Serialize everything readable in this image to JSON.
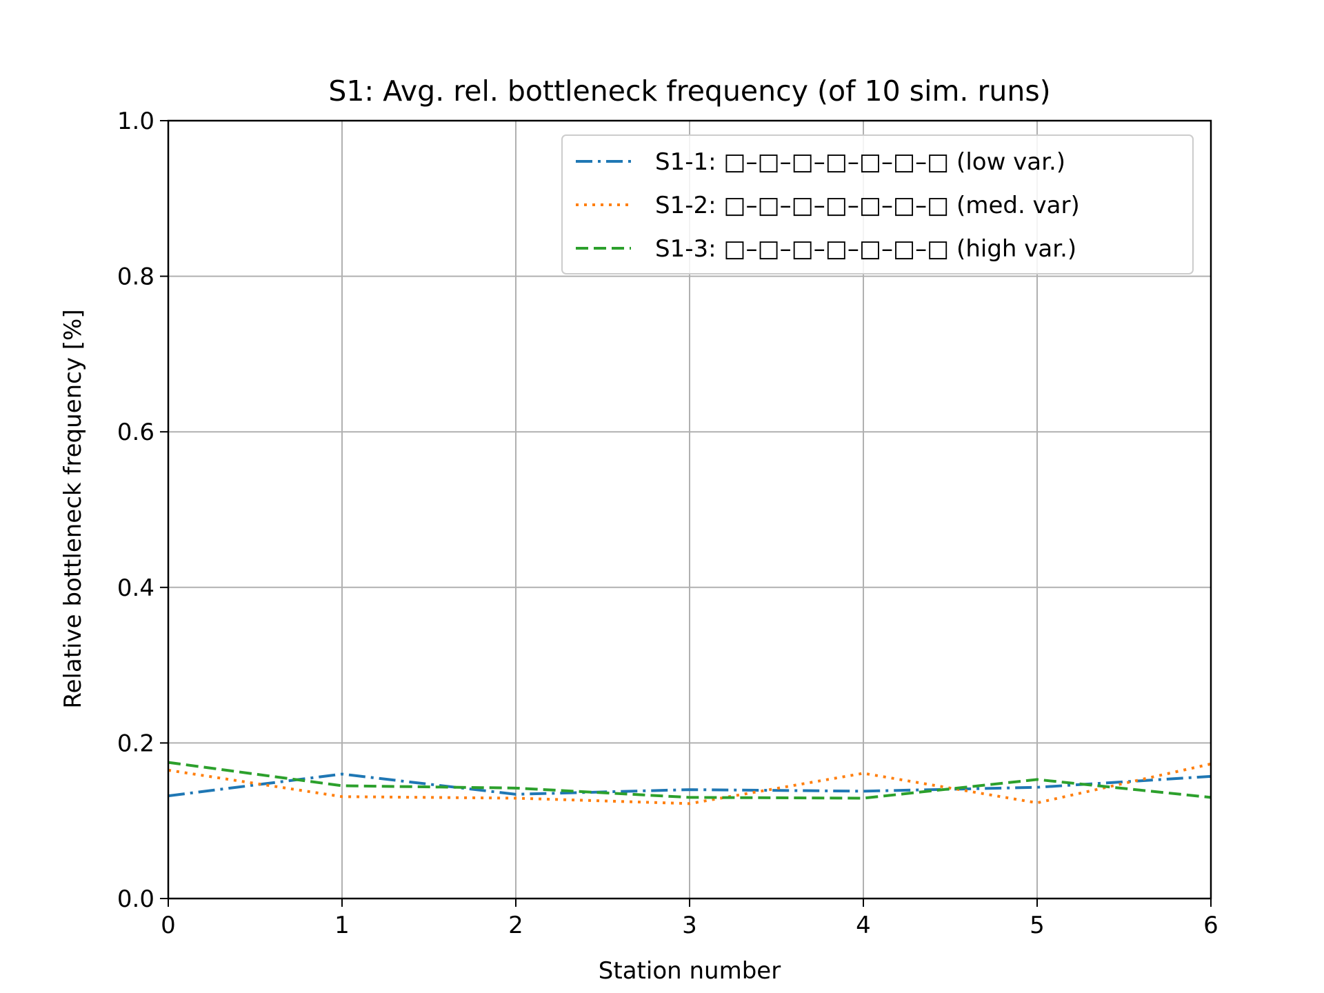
{
  "chart_data": {
    "type": "line",
    "title": "S1: Avg. rel. bottleneck frequency (of 10 sim. runs)",
    "xlabel": "Station number",
    "ylabel": "Relative bottleneck frequency [%]",
    "x": [
      0,
      1,
      2,
      3,
      4,
      5,
      6
    ],
    "xlim": [
      0,
      6
    ],
    "ylim": [
      0,
      1.0
    ],
    "xticks": [
      "0",
      "1",
      "2",
      "3",
      "4",
      "5",
      "6"
    ],
    "yticks": [
      "0.0",
      "0.2",
      "0.4",
      "0.6",
      "0.8",
      "1.0"
    ],
    "grid": true,
    "legend_position": "top-right",
    "series": [
      {
        "name": "S1-1: □–□–□–□–□–□–□ (low var.)",
        "values": [
          0.132,
          0.16,
          0.134,
          0.14,
          0.138,
          0.143,
          0.157
        ],
        "color": "#1f77b4",
        "style": "dashdot"
      },
      {
        "name": "S1-2: □–□–□–□–□–□–□ (med. var)",
        "values": [
          0.165,
          0.131,
          0.129,
          0.122,
          0.161,
          0.123,
          0.173
        ],
        "color": "#ff7f0e",
        "style": "dotted"
      },
      {
        "name": "S1-3: □–□–□–□–□–□–□ (high var.)",
        "values": [
          0.175,
          0.145,
          0.142,
          0.13,
          0.129,
          0.153,
          0.13
        ],
        "color": "#2ca02c",
        "style": "dashed"
      }
    ]
  }
}
